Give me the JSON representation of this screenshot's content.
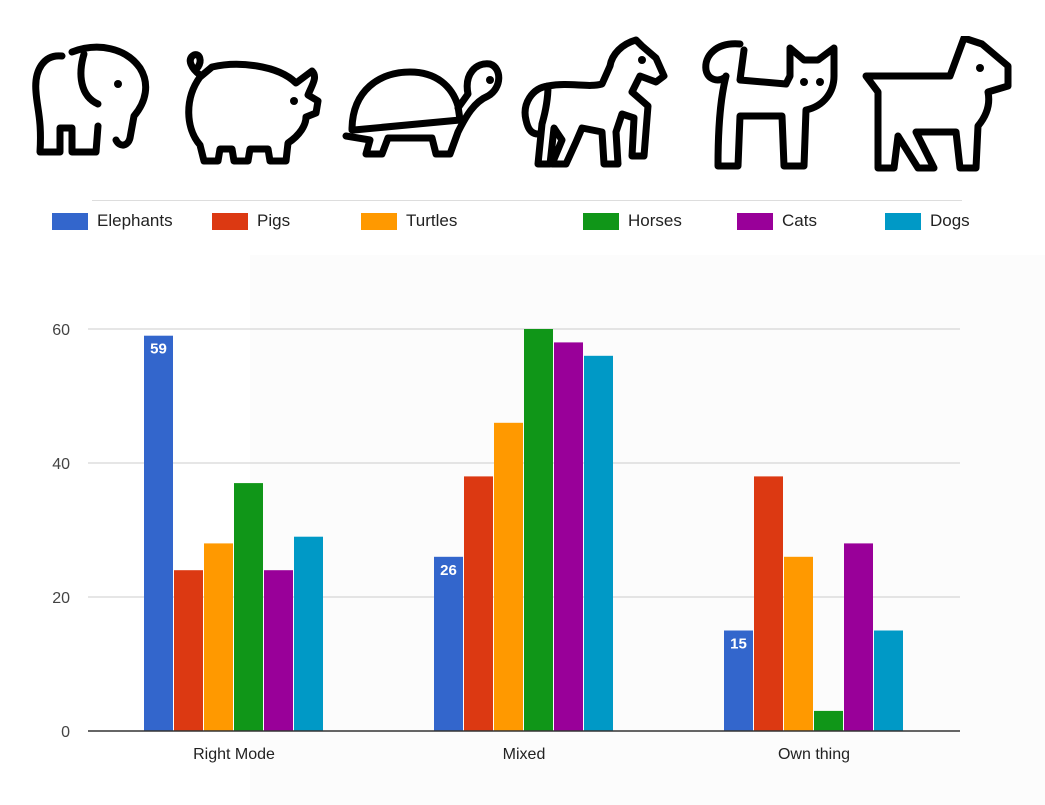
{
  "icons": [
    "elephant-icon",
    "pig-icon",
    "turtle-icon",
    "horse-icon",
    "cat-icon",
    "dog-icon"
  ],
  "legend": [
    {
      "label": "Elephants",
      "color": "#3366cc"
    },
    {
      "label": "Pigs",
      "color": "#dc3912"
    },
    {
      "label": "Turtles",
      "color": "#ff9900"
    },
    {
      "label": "Horses",
      "color": "#109618"
    },
    {
      "label": "Cats",
      "color": "#990099"
    },
    {
      "label": "Dogs",
      "color": "#0099c6"
    }
  ],
  "chart_data": {
    "type": "bar",
    "categories": [
      "Right Mode",
      "Mixed",
      "Own thing"
    ],
    "series": [
      {
        "name": "Elephants",
        "color": "#3366cc",
        "values": [
          59,
          26,
          15
        ]
      },
      {
        "name": "Pigs",
        "color": "#dc3912",
        "values": [
          24,
          38,
          38
        ]
      },
      {
        "name": "Turtles",
        "color": "#ff9900",
        "values": [
          28,
          46,
          26
        ]
      },
      {
        "name": "Horses",
        "color": "#109618",
        "values": [
          37,
          60,
          3
        ]
      },
      {
        "name": "Cats",
        "color": "#990099",
        "values": [
          24,
          58,
          28
        ]
      },
      {
        "name": "Dogs",
        "color": "#0099c6",
        "values": [
          29,
          56,
          15
        ]
      }
    ],
    "data_labels": {
      "series": "Elephants",
      "values": [
        "59",
        "26",
        "15"
      ]
    },
    "y_ticks": [
      "0",
      "20",
      "40",
      "60"
    ],
    "ylim": [
      0,
      60
    ],
    "grid": true,
    "legend_position": "top",
    "title": "",
    "xlabel": "",
    "ylabel": ""
  }
}
